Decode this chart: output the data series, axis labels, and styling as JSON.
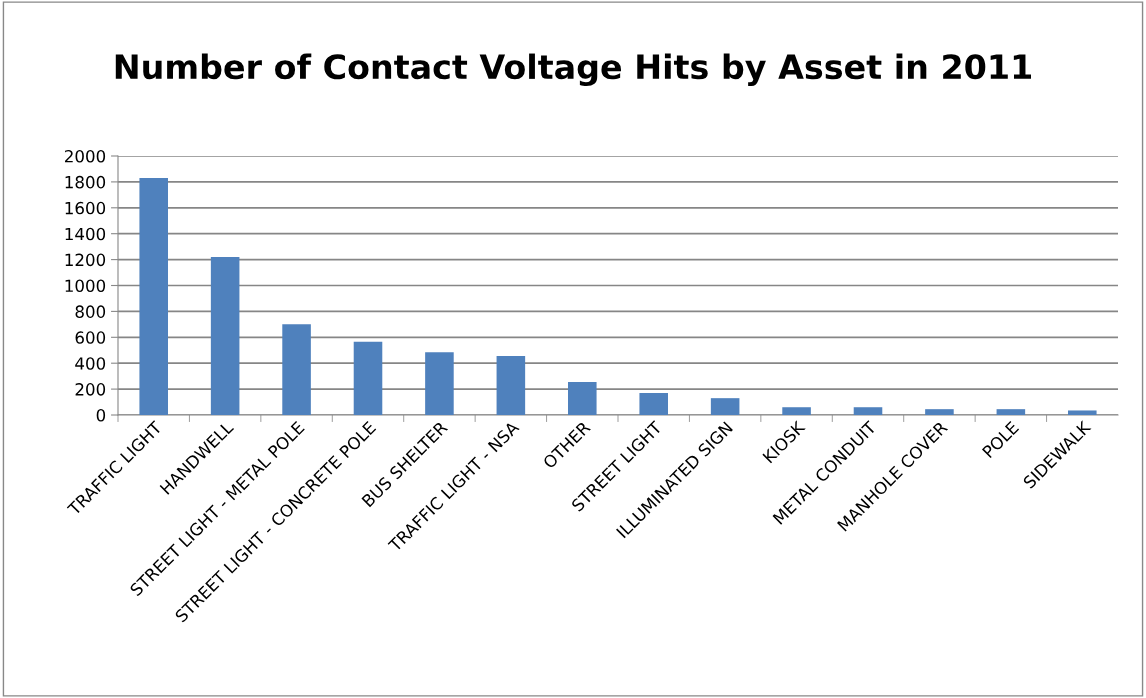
{
  "chart_data": {
    "type": "bar",
    "title": "Number of Contact Voltage Hits by Asset in 2011",
    "categories": [
      "TRAFFIC LIGHT",
      "HANDWELL",
      "STREET LIGHT - METAL POLE",
      "STREET LIGHT - CONCRETE POLE",
      "BUS SHELTER",
      "TRAFFIC LIGHT - NSA",
      "OTHER",
      "STREET LIGHT",
      "ILLUMINATED SIGN",
      "KIOSK",
      "METAL CONDUIT",
      "MANHOLE COVER",
      "POLE",
      "SIDEWALK"
    ],
    "values": [
      1830,
      1220,
      700,
      565,
      485,
      455,
      255,
      170,
      130,
      60,
      60,
      45,
      45,
      35
    ],
    "color": "#4f81bd",
    "ylim": [
      0,
      2000
    ],
    "yticks": [
      0,
      200,
      400,
      600,
      800,
      1000,
      1200,
      1400,
      1600,
      1800,
      2000
    ],
    "grid": "y"
  }
}
